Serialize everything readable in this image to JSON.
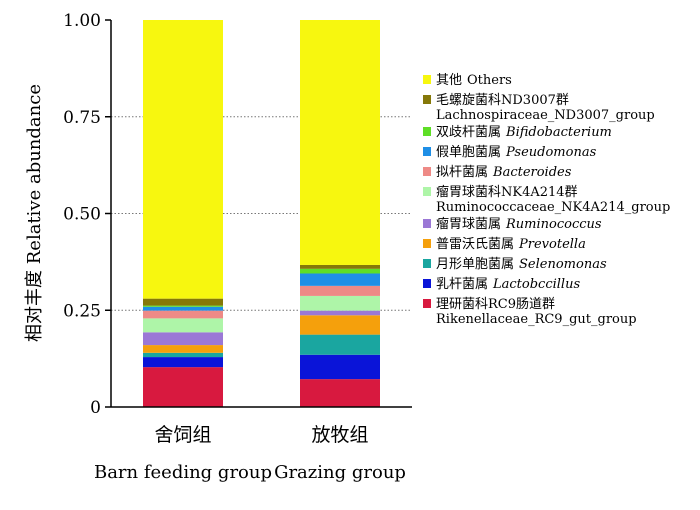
{
  "chart_data": {
    "type": "bar",
    "stacked": true,
    "ylabel": "相对丰度 Relative abundance",
    "ylim": [
      0,
      1
    ],
    "grid": "dotted horizontal",
    "legend_placement": "right",
    "y_ticks": [
      "0",
      "0.25",
      "0.50",
      "0.75",
      "1.00"
    ],
    "categories": [
      {
        "cn": "舍饲组",
        "en": "Barn feeding group"
      },
      {
        "cn": "放牧组",
        "en": "Grazing group"
      }
    ],
    "series": [
      {
        "cn": "理研菌科RC9肠道群",
        "en": "Rikenellaceae_RC9_gut_group",
        "italic": false,
        "color": "#d8193f",
        "values": [
          0.103,
          0.072
        ]
      },
      {
        "cn": "乳杆菌属",
        "en": "Lactobccillus",
        "italic": true,
        "color": "#0a14d8",
        "values": [
          0.026,
          0.063
        ]
      },
      {
        "cn": "月形单胞菌属",
        "en": "Selenomonas",
        "italic": true,
        "color": "#1aa6a0",
        "values": [
          0.011,
          0.052
        ]
      },
      {
        "cn": "普雷沃氏菌属",
        "en": "Prevotella",
        "italic": true,
        "color": "#f5a00c",
        "values": [
          0.02,
          0.05
        ]
      },
      {
        "cn": "瘤胃球菌属",
        "en": "Ruminococcus",
        "italic": true,
        "color": "#9b78d6",
        "values": [
          0.033,
          0.012
        ]
      },
      {
        "cn": "瘤胃球菌科NK4A214群",
        "en": "Ruminococcaceae_NK4A214_group",
        "italic": false,
        "color": "#aef5a8",
        "values": [
          0.036,
          0.038
        ]
      },
      {
        "cn": "拟杆菌属",
        "en": "Bacteroides",
        "italic": true,
        "color": "#ee8a86",
        "values": [
          0.02,
          0.026
        ]
      },
      {
        "cn": "假单胞菌属",
        "en": "Pseudomonas",
        "italic": true,
        "color": "#1f8fe6",
        "values": [
          0.01,
          0.032
        ]
      },
      {
        "cn": "双歧杆菌属",
        "en": "Bifidobacterium",
        "italic": true,
        "color": "#5ede26",
        "values": [
          0.003,
          0.012
        ]
      },
      {
        "cn": "毛螺旋菌科ND3007群",
        "en": "Lachnospiraceae_ND3007_group",
        "italic": false,
        "color": "#857808",
        "values": [
          0.018,
          0.01
        ]
      },
      {
        "cn": "其他",
        "en": "Others",
        "italic": false,
        "color": "#f7f70f",
        "values": [
          0.72,
          0.633
        ]
      }
    ]
  }
}
